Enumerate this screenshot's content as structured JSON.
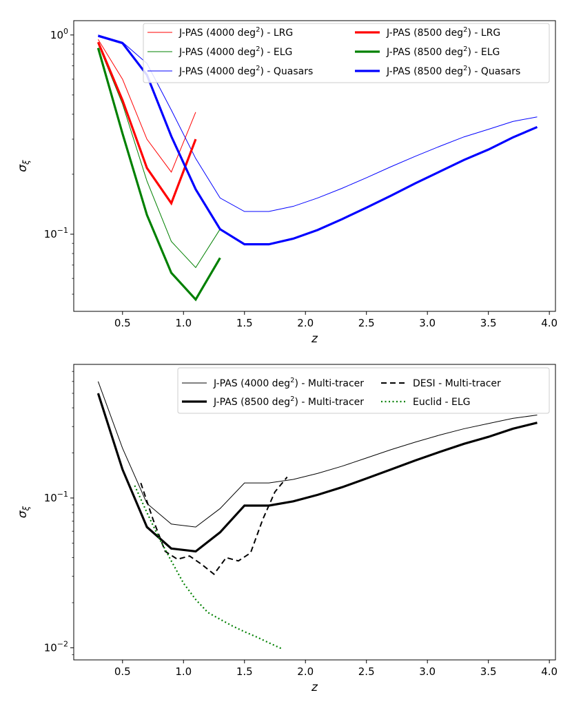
{
  "chart_data": [
    {
      "type": "line",
      "yscale": "log",
      "xlabel": "z",
      "ylabel": "σ_ξ",
      "xlim": [
        0.1,
        4.05
      ],
      "ylim": [
        0.041,
        1.18
      ],
      "xticks": [
        0.5,
        1.0,
        1.5,
        2.0,
        2.5,
        3.0,
        3.5,
        4.0
      ],
      "xtick_labels": [
        "0.5",
        "1.0",
        "1.5",
        "2.0",
        "2.5",
        "3.0",
        "3.5",
        "4.0"
      ],
      "ytick_labels": [
        {
          "value": 1,
          "base": "10",
          "exp": "0"
        },
        {
          "value": 0.1,
          "base": "10",
          "exp": "−1"
        }
      ],
      "legend_position": "top-right",
      "series": [
        {
          "name": "J-PAS (4000 deg²) - LRG",
          "name_base": "J-PAS (4000 deg",
          "name_sup": "2",
          "name_tail": ") - LRG",
          "color": "#ff0000",
          "width": 1,
          "dash": "solid",
          "x": [
            0.3,
            0.5,
            0.7,
            0.9,
            1.1
          ],
          "y": [
            0.95,
            0.6,
            0.3,
            0.205,
            0.41
          ]
        },
        {
          "name": "J-PAS (4000 deg²) - ELG",
          "name_base": "J-PAS (4000 deg",
          "name_sup": "2",
          "name_tail": ") - ELG",
          "color": "#008000",
          "width": 1,
          "dash": "solid",
          "x": [
            0.3,
            0.5,
            0.7,
            0.9,
            1.1,
            1.3
          ],
          "y": [
            0.9,
            0.45,
            0.185,
            0.092,
            0.068,
            0.106
          ]
        },
        {
          "name": "J-PAS (4000 deg²) - Quasars",
          "name_base": "J-PAS (4000 deg",
          "name_sup": "2",
          "name_tail": ") - Quasars",
          "color": "#0000ff",
          "width": 1,
          "dash": "solid",
          "x": [
            0.3,
            0.5,
            0.7,
            0.9,
            1.1,
            1.3,
            1.5,
            1.7,
            1.9,
            2.1,
            2.3,
            2.5,
            2.7,
            2.9,
            3.1,
            3.3,
            3.5,
            3.7,
            3.9
          ],
          "y": [
            1.0,
            0.92,
            0.72,
            0.42,
            0.24,
            0.152,
            0.13,
            0.13,
            0.138,
            0.152,
            0.17,
            0.192,
            0.218,
            0.246,
            0.276,
            0.308,
            0.336,
            0.368,
            0.388
          ]
        },
        {
          "name": "J-PAS (8500 deg²) - LRG",
          "name_base": "J-PAS (8500 deg",
          "name_sup": "2",
          "name_tail": ") - LRG",
          "color": "#ff0000",
          "width": 3.2,
          "dash": "solid",
          "x": [
            0.3,
            0.5,
            0.7,
            0.9,
            1.1
          ],
          "y": [
            0.92,
            0.47,
            0.215,
            0.143,
            0.3
          ]
        },
        {
          "name": "J-PAS (8500 deg²) - ELG",
          "name_base": "J-PAS (8500 deg",
          "name_sup": "2",
          "name_tail": ") - ELG",
          "color": "#008000",
          "width": 3.2,
          "dash": "solid",
          "x": [
            0.3,
            0.5,
            0.7,
            0.9,
            1.1,
            1.3
          ],
          "y": [
            0.86,
            0.32,
            0.125,
            0.064,
            0.047,
            0.076
          ]
        },
        {
          "name": "J-PAS (8500 deg²) - Quasars",
          "name_base": "J-PAS (8500 deg",
          "name_sup": "2",
          "name_tail": ") - Quasars",
          "color": "#0000ff",
          "width": 3.2,
          "dash": "solid",
          "x": [
            0.3,
            0.5,
            0.7,
            0.9,
            1.1,
            1.3,
            1.5,
            1.7,
            1.9,
            2.1,
            2.3,
            2.5,
            2.7,
            2.9,
            3.1,
            3.3,
            3.5,
            3.7,
            3.9
          ],
          "y": [
            0.99,
            0.91,
            0.63,
            0.31,
            0.168,
            0.106,
            0.089,
            0.089,
            0.095,
            0.105,
            0.119,
            0.136,
            0.156,
            0.18,
            0.206,
            0.236,
            0.266,
            0.306,
            0.345
          ]
        }
      ]
    },
    {
      "type": "line",
      "yscale": "log",
      "xlabel": "z",
      "ylabel": "σ_ξ",
      "xlim": [
        0.1,
        4.05
      ],
      "ylim": [
        0.0083,
        0.78
      ],
      "xticks": [
        0.5,
        1.0,
        1.5,
        2.0,
        2.5,
        3.0,
        3.5,
        4.0
      ],
      "xtick_labels": [
        "0.5",
        "1.0",
        "1.5",
        "2.0",
        "2.5",
        "3.0",
        "3.5",
        "4.0"
      ],
      "ytick_labels": [
        {
          "value": 0.1,
          "base": "10",
          "exp": "−1"
        },
        {
          "value": 0.01,
          "base": "10",
          "exp": "−2"
        }
      ],
      "legend_position": "top-right",
      "series": [
        {
          "name": "J-PAS (4000 deg²) - Multi-tracer",
          "name_base": "J-PAS (4000 deg",
          "name_sup": "2",
          "name_tail": ") - Multi-tracer",
          "color": "#000000",
          "width": 1,
          "dash": "solid",
          "x": [
            0.3,
            0.5,
            0.7,
            0.9,
            1.1,
            1.3,
            1.5,
            1.7,
            1.9,
            2.1,
            2.3,
            2.5,
            2.7,
            2.9,
            3.1,
            3.3,
            3.5,
            3.7,
            3.9
          ],
          "y": [
            0.6,
            0.215,
            0.092,
            0.067,
            0.064,
            0.085,
            0.126,
            0.126,
            0.133,
            0.146,
            0.163,
            0.185,
            0.21,
            0.236,
            0.263,
            0.29,
            0.314,
            0.34,
            0.358
          ]
        },
        {
          "name": "J-PAS (8500 deg²) - Multi-tracer",
          "name_base": "J-PAS (8500 deg",
          "name_sup": "2",
          "name_tail": ") - Multi-tracer",
          "color": "#000000",
          "width": 3.2,
          "dash": "solid",
          "x": [
            0.3,
            0.5,
            0.7,
            0.9,
            1.1,
            1.3,
            1.5,
            1.7,
            1.9,
            2.1,
            2.3,
            2.5,
            2.7,
            2.9,
            3.1,
            3.3,
            3.5,
            3.7,
            3.9
          ],
          "y": [
            0.5,
            0.155,
            0.064,
            0.046,
            0.044,
            0.059,
            0.089,
            0.089,
            0.095,
            0.105,
            0.118,
            0.135,
            0.155,
            0.178,
            0.203,
            0.23,
            0.256,
            0.29,
            0.318
          ]
        },
        {
          "name": "DESI - Multi-tracer",
          "name_base": "DESI - Multi-tracer",
          "name_sup": "",
          "name_tail": "",
          "color": "#000000",
          "width": 2,
          "dash": "8,5",
          "x": [
            0.65,
            0.75,
            0.85,
            0.95,
            1.05,
            1.15,
            1.25,
            1.35,
            1.45,
            1.55,
            1.65,
            1.75,
            1.85
          ],
          "y": [
            0.126,
            0.072,
            0.044,
            0.039,
            0.041,
            0.036,
            0.031,
            0.04,
            0.038,
            0.043,
            0.072,
            0.11,
            0.138
          ]
        },
        {
          "name": "Euclid - ELG",
          "name_base": "Euclid - ELG",
          "name_sup": "",
          "name_tail": "",
          "color": "#008000",
          "width": 2.2,
          "dash": "2,3.5",
          "x": [
            0.6,
            0.7,
            0.8,
            0.9,
            1.0,
            1.1,
            1.2,
            1.3,
            1.4,
            1.5,
            1.6,
            1.7,
            1.8
          ],
          "y": [
            0.121,
            0.08,
            0.054,
            0.038,
            0.027,
            0.021,
            0.0172,
            0.0155,
            0.014,
            0.0128,
            0.0118,
            0.0108,
            0.0099
          ]
        }
      ]
    }
  ]
}
